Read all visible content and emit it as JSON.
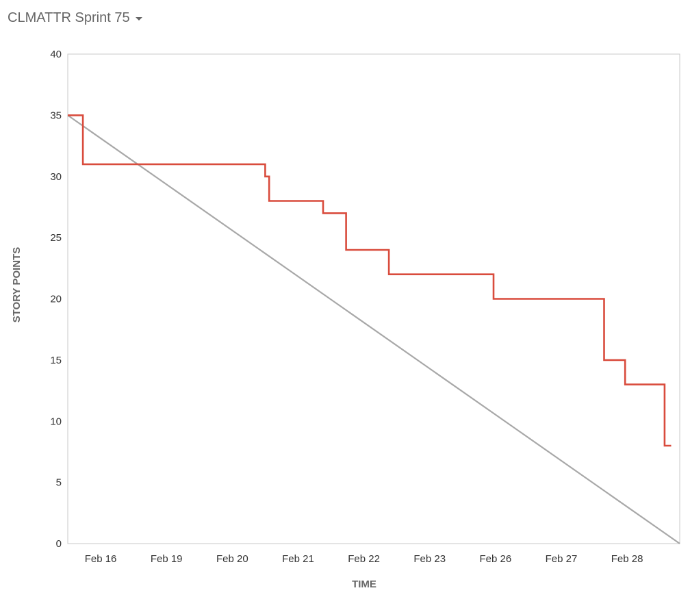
{
  "header": {
    "sprint_name": "CLMATTR Sprint 75",
    "dropdown_icon": "caret-down-icon"
  },
  "chart_data": {
    "type": "line",
    "title": "",
    "xlabel": "TIME",
    "ylabel": "STORY POINTS",
    "x_is_tick_position": true,
    "ylim": [
      0,
      40
    ],
    "yticks": [
      0,
      5,
      10,
      15,
      20,
      25,
      30,
      35,
      40
    ],
    "categories": [
      "Feb 16",
      "Feb 19",
      "Feb 20",
      "Feb 21",
      "Feb 22",
      "Feb 23",
      "Feb 26",
      "Feb 27",
      "Feb 28"
    ],
    "xlim": [
      -0.5,
      8.8
    ],
    "grid": false,
    "legend": "none",
    "series": [
      {
        "role": "guideline",
        "color": "#a8a8a8",
        "step": false,
        "points": [
          [
            -0.5,
            35
          ],
          [
            8.8,
            0
          ]
        ]
      },
      {
        "role": "remaining",
        "color": "#d94c3d",
        "step": true,
        "points": [
          [
            -0.5,
            35
          ],
          [
            -0.27,
            31
          ],
          [
            2.5,
            30
          ],
          [
            2.56,
            28
          ],
          [
            3.38,
            27
          ],
          [
            3.73,
            24
          ],
          [
            4.38,
            22
          ],
          [
            5.97,
            20
          ],
          [
            7.65,
            15
          ],
          [
            7.97,
            13
          ],
          [
            8.57,
            8
          ],
          [
            8.67,
            8
          ]
        ]
      }
    ]
  }
}
